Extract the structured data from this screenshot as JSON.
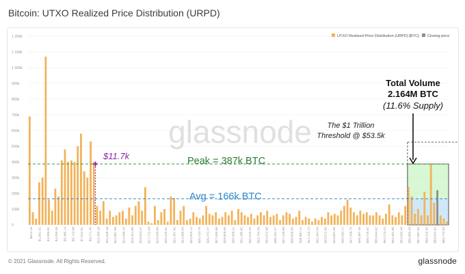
{
  "title": "Bitcoin: UTXO Realized Price Distribution (URPD)",
  "footer": {
    "copyright": "© 2021 Glassnode. All Rights Reserved.",
    "logo": "glassnode"
  },
  "watermark": "glassnode",
  "colors": {
    "bar": "#f2b35a",
    "closing_price": "#8e8e8e",
    "peak_line": "#2f9a3c",
    "avg_line": "#2e86c9",
    "peak_text": "#2e7d32",
    "avg_text": "#2e86c9",
    "price_marker": "#8e24aa",
    "green_zone": "#b8f0b0",
    "blue_zone": "#a9d7f4",
    "grid": "#eeeeee"
  },
  "annotations": {
    "peak": "Peak = 387k BTC",
    "avg": "Avg = 166k BTC",
    "price_label": "$11.7k",
    "threshold_line1": "The $1 Trillion",
    "threshold_line2": "Threshold @ $53.5k",
    "total_line1": "Total Volume",
    "total_line2": "2.164M BTC",
    "total_line3": "(11.6% Supply)"
  },
  "chart_data": {
    "type": "bar",
    "title": "Bitcoin: UTXO Realized Price Distribution (URPD)",
    "legend": [
      "UTXO Realized Price Distribution (URPD) [BTC]",
      "Closing price"
    ],
    "legend_position": "top-right",
    "grid": true,
    "ylim": [
      0,
      1200000
    ],
    "y_ticks": [
      "0",
      "100k",
      "200k",
      "300k",
      "400k",
      "500k",
      "600k",
      "700k",
      "800k",
      "900k",
      "1 000k",
      "1 100k",
      "1 200k"
    ],
    "x_tick_labels": [
      "$613.16",
      "$1,842.31",
      "$3,059.81",
      "$4,250.49",
      "$5,485.14",
      "$6,713.98",
      "$7,942.61",
      "$9,171.45",
      "$10,400.28",
      "$11,628.46",
      "$12,857.55",
      "$14,086.24",
      "$15,314.85",
      "$16,543.47",
      "$17,772.08",
      "$19,000.69",
      "$20,229.31",
      "$21,457.92",
      "$22,686.53",
      "$23,915.14",
      "$25,143.76",
      "$26,372.37",
      "$27,600.98",
      "$28,829.59",
      "$30,058.21",
      "$31,286.82",
      "$32,515.43",
      "$33,744.05",
      "$34,972.66",
      "$36,201.27",
      "$37,429.88",
      "$38,658.50",
      "$39,887.11",
      "$41,115.72",
      "$42,344.34",
      "$43,572.95",
      "$44,801.56",
      "$46,030.17",
      "$47,258.79",
      "$48,487.40",
      "$49,716.01",
      "$50,944.62",
      "$52,173.24",
      "$53,401.85",
      "$54,630.46",
      "$55,859.08",
      "$57,087.69",
      "$58,316.30",
      "$59,544.91",
      "$60,773.53"
    ],
    "values": [
      690000,
      80000,
      40000,
      270000,
      300000,
      1070000,
      160000,
      90000,
      230000,
      180000,
      410000,
      480000,
      400000,
      410000,
      400000,
      500000,
      580000,
      340000,
      300000,
      530000,
      400000,
      120000,
      90000,
      150000,
      40000,
      90000,
      50000,
      60000,
      80000,
      90000,
      40000,
      110000,
      60000,
      120000,
      150000,
      90000,
      240000,
      20000,
      10000,
      120000,
      30000,
      80000,
      100000,
      20000,
      180000,
      170000,
      30000,
      90000,
      120000,
      30000,
      40000,
      80000,
      50000,
      40000,
      60000,
      120000,
      70000,
      60000,
      80000,
      40000,
      50000,
      80000,
      60000,
      90000,
      30000,
      100000,
      80000,
      60000,
      50000,
      70000,
      40000,
      60000,
      80000,
      60000,
      90000,
      50000,
      60000,
      70000,
      30000,
      60000,
      80000,
      70000,
      40000,
      50000,
      90000,
      30000,
      50000,
      40000,
      20000,
      40000,
      30000,
      50000,
      40000,
      80000,
      60000,
      70000,
      60000,
      90000,
      120000,
      160000,
      110000,
      80000,
      60000,
      90000,
      70000,
      80000,
      60000,
      60000,
      80000,
      60000,
      40000,
      70000,
      130000,
      60000,
      50000,
      80000,
      60000,
      120000,
      240000,
      180000,
      70000,
      100000,
      60000,
      210000,
      60000,
      390000,
      140000,
      220000,
      60000,
      40000,
      20000
    ],
    "price_marker_index": 20,
    "price_marker_value": 387000,
    "peak": 387000,
    "avg": 166000,
    "threshold_index": 118,
    "closing_price_index": 127
  }
}
